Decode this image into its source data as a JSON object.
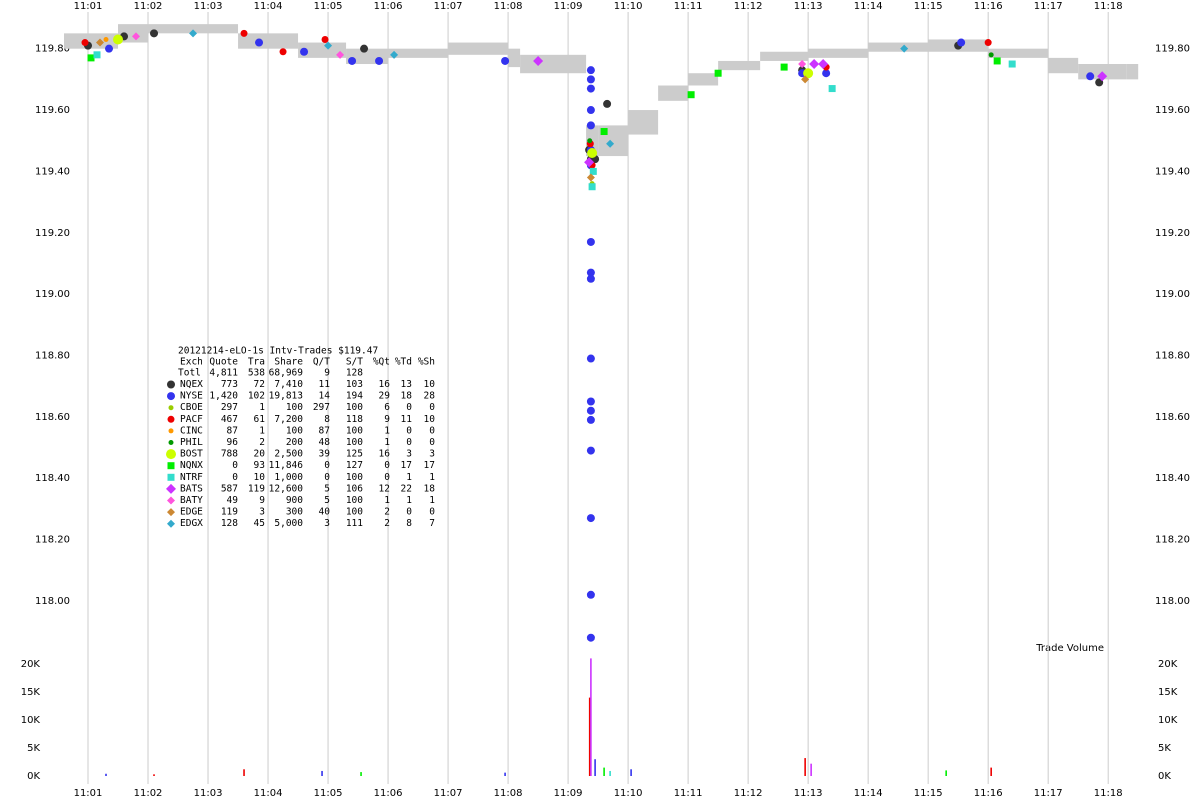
{
  "chart_data": [
    {
      "type": "scatter",
      "xlim": [
        0.5,
        18.53
      ],
      "ylim": [
        117.84,
        119.9
      ],
      "xticks": [
        {
          "value": 1,
          "label": "11:01"
        },
        {
          "value": 2,
          "label": "11:02"
        },
        {
          "value": 3,
          "label": "11:03"
        },
        {
          "value": 4,
          "label": "11:04"
        },
        {
          "value": 5,
          "label": "11:05"
        },
        {
          "value": 6,
          "label": "11:06"
        },
        {
          "value": 7,
          "label": "11:07"
        },
        {
          "value": 8,
          "label": "11:08"
        },
        {
          "value": 9,
          "label": "11:09"
        },
        {
          "value": 10,
          "label": "11:10"
        },
        {
          "value": 11,
          "label": "11:11"
        },
        {
          "value": 12,
          "label": "11:12"
        },
        {
          "value": 13,
          "label": "11:13"
        },
        {
          "value": 14,
          "label": "11:14"
        },
        {
          "value": 15,
          "label": "11:15"
        },
        {
          "value": 16,
          "label": "11:16"
        },
        {
          "value": 17,
          "label": "11:17"
        },
        {
          "value": 18,
          "label": "11:18"
        }
      ],
      "yticks": [
        {
          "value": 118,
          "label": "118.00"
        },
        {
          "value": 118.2,
          "label": "118.20"
        },
        {
          "value": 118.4,
          "label": "118.40"
        },
        {
          "value": 118.6,
          "label": "118.60"
        },
        {
          "value": 118.8,
          "label": "118.80"
        },
        {
          "value": 119,
          "label": "119.00"
        },
        {
          "value": 119.2,
          "label": "119.20"
        },
        {
          "value": 119.4,
          "label": "119.40"
        },
        {
          "value": 119.6,
          "label": "119.60"
        },
        {
          "value": 119.8,
          "label": "119.80"
        }
      ],
      "grid": true,
      "band": {
        "color": "#cccccc",
        "x": [
          0.6,
          1.0,
          1.5,
          2.0,
          3.5,
          4.0,
          4.5,
          5.0,
          5.3,
          6.0,
          7.0,
          8.0,
          8.2,
          9.0,
          9.3,
          9.5,
          10.0,
          10.5,
          11.0,
          11.5,
          12.2,
          13.0,
          14.0,
          15.0,
          16.0,
          17.0,
          17.5,
          18.3
        ],
        "low": [
          119.8,
          119.8,
          119.82,
          119.85,
          119.8,
          119.8,
          119.77,
          119.77,
          119.75,
          119.77,
          119.78,
          119.74,
          119.72,
          119.72,
          119.45,
          119.45,
          119.52,
          119.63,
          119.68,
          119.73,
          119.76,
          119.77,
          119.79,
          119.79,
          119.77,
          119.72,
          119.7,
          119.7
        ],
        "high": [
          119.85,
          119.85,
          119.88,
          119.88,
          119.85,
          119.85,
          119.82,
          119.82,
          119.8,
          119.8,
          119.82,
          119.8,
          119.78,
          119.78,
          119.55,
          119.55,
          119.6,
          119.68,
          119.72,
          119.76,
          119.79,
          119.8,
          119.82,
          119.83,
          119.8,
          119.77,
          119.75,
          119.75
        ]
      },
      "series": [
        {
          "name": "NQEX",
          "color": "#333333",
          "marker": "circle",
          "size": 4,
          "x": [
            1.0,
            1.6,
            2.1,
            5.6,
            9.35,
            9.38,
            9.45,
            9.65,
            12.9,
            15.5,
            17.85
          ],
          "values": [
            119.81,
            119.84,
            119.85,
            119.8,
            119.47,
            119.44,
            119.44,
            119.62,
            119.73,
            119.81,
            119.69
          ]
        },
        {
          "name": "NYSE",
          "color": "#3333ee",
          "marker": "circle",
          "size": 4,
          "x": [
            1.35,
            3.85,
            4.6,
            5.4,
            5.85,
            7.95,
            9.38,
            9.38,
            9.38,
            9.38,
            9.38,
            9.38,
            9.38,
            9.38,
            9.38,
            9.38,
            9.38,
            9.38,
            9.38,
            9.38,
            9.38,
            9.38,
            9.38,
            9.38,
            12.9,
            13.3,
            15.55,
            17.7
          ],
          "values": [
            119.8,
            119.82,
            119.79,
            119.76,
            119.76,
            119.76,
            119.73,
            119.7,
            119.67,
            119.6,
            119.55,
            119.47,
            119.42,
            119.17,
            119.07,
            119.05,
            118.79,
            118.65,
            118.62,
            118.59,
            118.49,
            118.27,
            118.02,
            117.88,
            119.72,
            119.72,
            119.82,
            119.71
          ]
        },
        {
          "name": "CBOE",
          "color": "#99cc00",
          "marker": "circle",
          "size": 2.5,
          "x": [
            9.4
          ],
          "values": [
            119.36
          ]
        },
        {
          "name": "PACF",
          "color": "#ee0000",
          "marker": "circle",
          "size": 3.5,
          "x": [
            0.95,
            3.6,
            4.25,
            4.95,
            9.37,
            9.4,
            13.3,
            16.0
          ],
          "values": [
            119.82,
            119.85,
            119.79,
            119.83,
            119.49,
            119.42,
            119.74,
            119.82
          ]
        },
        {
          "name": "CINC",
          "color": "#ff9900",
          "marker": "circle",
          "size": 2.5,
          "x": [
            1.3
          ],
          "values": [
            119.83
          ]
        },
        {
          "name": "PHIL",
          "color": "#009900",
          "marker": "circle",
          "size": 2.5,
          "x": [
            9.36,
            16.05
          ],
          "values": [
            119.5,
            119.78
          ]
        },
        {
          "name": "BOST",
          "color": "#ccff00",
          "marker": "circle",
          "size": 5,
          "x": [
            1.5,
            9.4,
            13.0
          ],
          "values": [
            119.83,
            119.46,
            119.72
          ]
        },
        {
          "name": "NQNX",
          "color": "#00ee00",
          "marker": "square",
          "size": 3.5,
          "x": [
            1.05,
            9.6,
            11.05,
            11.5,
            12.6,
            16.15
          ],
          "values": [
            119.77,
            119.53,
            119.65,
            119.72,
            119.74,
            119.76
          ]
        },
        {
          "name": "NTRF",
          "color": "#33ddcc",
          "marker": "square",
          "size": 3.5,
          "x": [
            1.15,
            9.4,
            9.42,
            13.4,
            16.4
          ],
          "values": [
            119.78,
            119.35,
            119.4,
            119.67,
            119.75
          ]
        },
        {
          "name": "BATS",
          "color": "#cc33ff",
          "marker": "diamond",
          "size": 5,
          "x": [
            8.5,
            9.35,
            13.1,
            13.25,
            17.9
          ],
          "values": [
            119.76,
            119.43,
            119.75,
            119.75,
            119.71
          ]
        },
        {
          "name": "BATY",
          "color": "#ff55dd",
          "marker": "diamond",
          "size": 4,
          "x": [
            1.8,
            5.2,
            12.9
          ],
          "values": [
            119.84,
            119.78,
            119.75
          ]
        },
        {
          "name": "EDGE",
          "color": "#cc8833",
          "marker": "diamond",
          "size": 4,
          "x": [
            1.2,
            9.38,
            12.95
          ],
          "values": [
            119.82,
            119.38,
            119.7
          ]
        },
        {
          "name": "EDGX",
          "color": "#33aacc",
          "marker": "diamond",
          "size": 4,
          "x": [
            2.75,
            5.0,
            6.1,
            9.7,
            14.6
          ],
          "values": [
            119.85,
            119.81,
            119.78,
            119.49,
            119.8
          ]
        }
      ],
      "stats": {
        "title": "20121214-eLO-1s Intv-Trades $119.47",
        "columns": [
          "Exch",
          "Quote",
          "Tra",
          "Share",
          "Q/T",
          "S/T",
          "%Qt",
          "%Td",
          "%Sh"
        ],
        "total": [
          "Totl",
          "4,811",
          "538",
          "68,969",
          "9",
          "128"
        ],
        "rows": [
          [
            "773",
            "72",
            "7,410",
            "11",
            "103",
            "16",
            "13",
            "10"
          ],
          [
            "1,420",
            "102",
            "19,813",
            "14",
            "194",
            "29",
            "18",
            "28"
          ],
          [
            "297",
            "1",
            "100",
            "297",
            "100",
            "6",
            "0",
            "0"
          ],
          [
            "467",
            "61",
            "7,200",
            "8",
            "118",
            "9",
            "11",
            "10"
          ],
          [
            "87",
            "1",
            "100",
            "87",
            "100",
            "1",
            "0",
            "0"
          ],
          [
            "96",
            "2",
            "200",
            "48",
            "100",
            "1",
            "0",
            "0"
          ],
          [
            "788",
            "20",
            "2,500",
            "39",
            "125",
            "16",
            "3",
            "3"
          ],
          [
            "0",
            "93",
            "11,846",
            "0",
            "127",
            "0",
            "17",
            "17"
          ],
          [
            "0",
            "10",
            "1,000",
            "0",
            "100",
            "0",
            "1",
            "1"
          ],
          [
            "587",
            "119",
            "12,600",
            "5",
            "106",
            "12",
            "22",
            "18"
          ],
          [
            "49",
            "9",
            "900",
            "5",
            "100",
            "1",
            "1",
            "1"
          ],
          [
            "119",
            "3",
            "300",
            "40",
            "100",
            "2",
            "0",
            "0"
          ],
          [
            "128",
            "45",
            "5,000",
            "3",
            "111",
            "2",
            "8",
            "7"
          ]
        ]
      }
    },
    {
      "type": "bar",
      "title": "Trade Volume",
      "ylim": [
        0,
        21500
      ],
      "yticks": [
        {
          "value": 0,
          "label": "0K"
        },
        {
          "value": 5000,
          "label": "5K"
        },
        {
          "value": 10000,
          "label": "10K"
        },
        {
          "value": 15000,
          "label": "15K"
        },
        {
          "value": 20000,
          "label": "20K"
        }
      ],
      "x": [
        1.3,
        2.1,
        3.6,
        4.9,
        5.55,
        7.95,
        9.36,
        9.38,
        9.45,
        9.6,
        9.7,
        10.05,
        12.95,
        13.05,
        15.3,
        16.05
      ],
      "values": [
        400,
        300,
        1200,
        900,
        700,
        600,
        14000,
        21000,
        3000,
        1500,
        900,
        1200,
        3200,
        2200,
        1000,
        1500
      ],
      "colors": [
        "#3333ee",
        "#ee0000",
        "#ee0000",
        "#3333ee",
        "#00ee00",
        "#3333ee",
        "#ee0000",
        "#cc33ff",
        "#3333ee",
        "#00ee00",
        "#33ddcc",
        "#3333ee",
        "#ee0000",
        "#cc33ff",
        "#00ee00",
        "#ee0000"
      ]
    }
  ]
}
